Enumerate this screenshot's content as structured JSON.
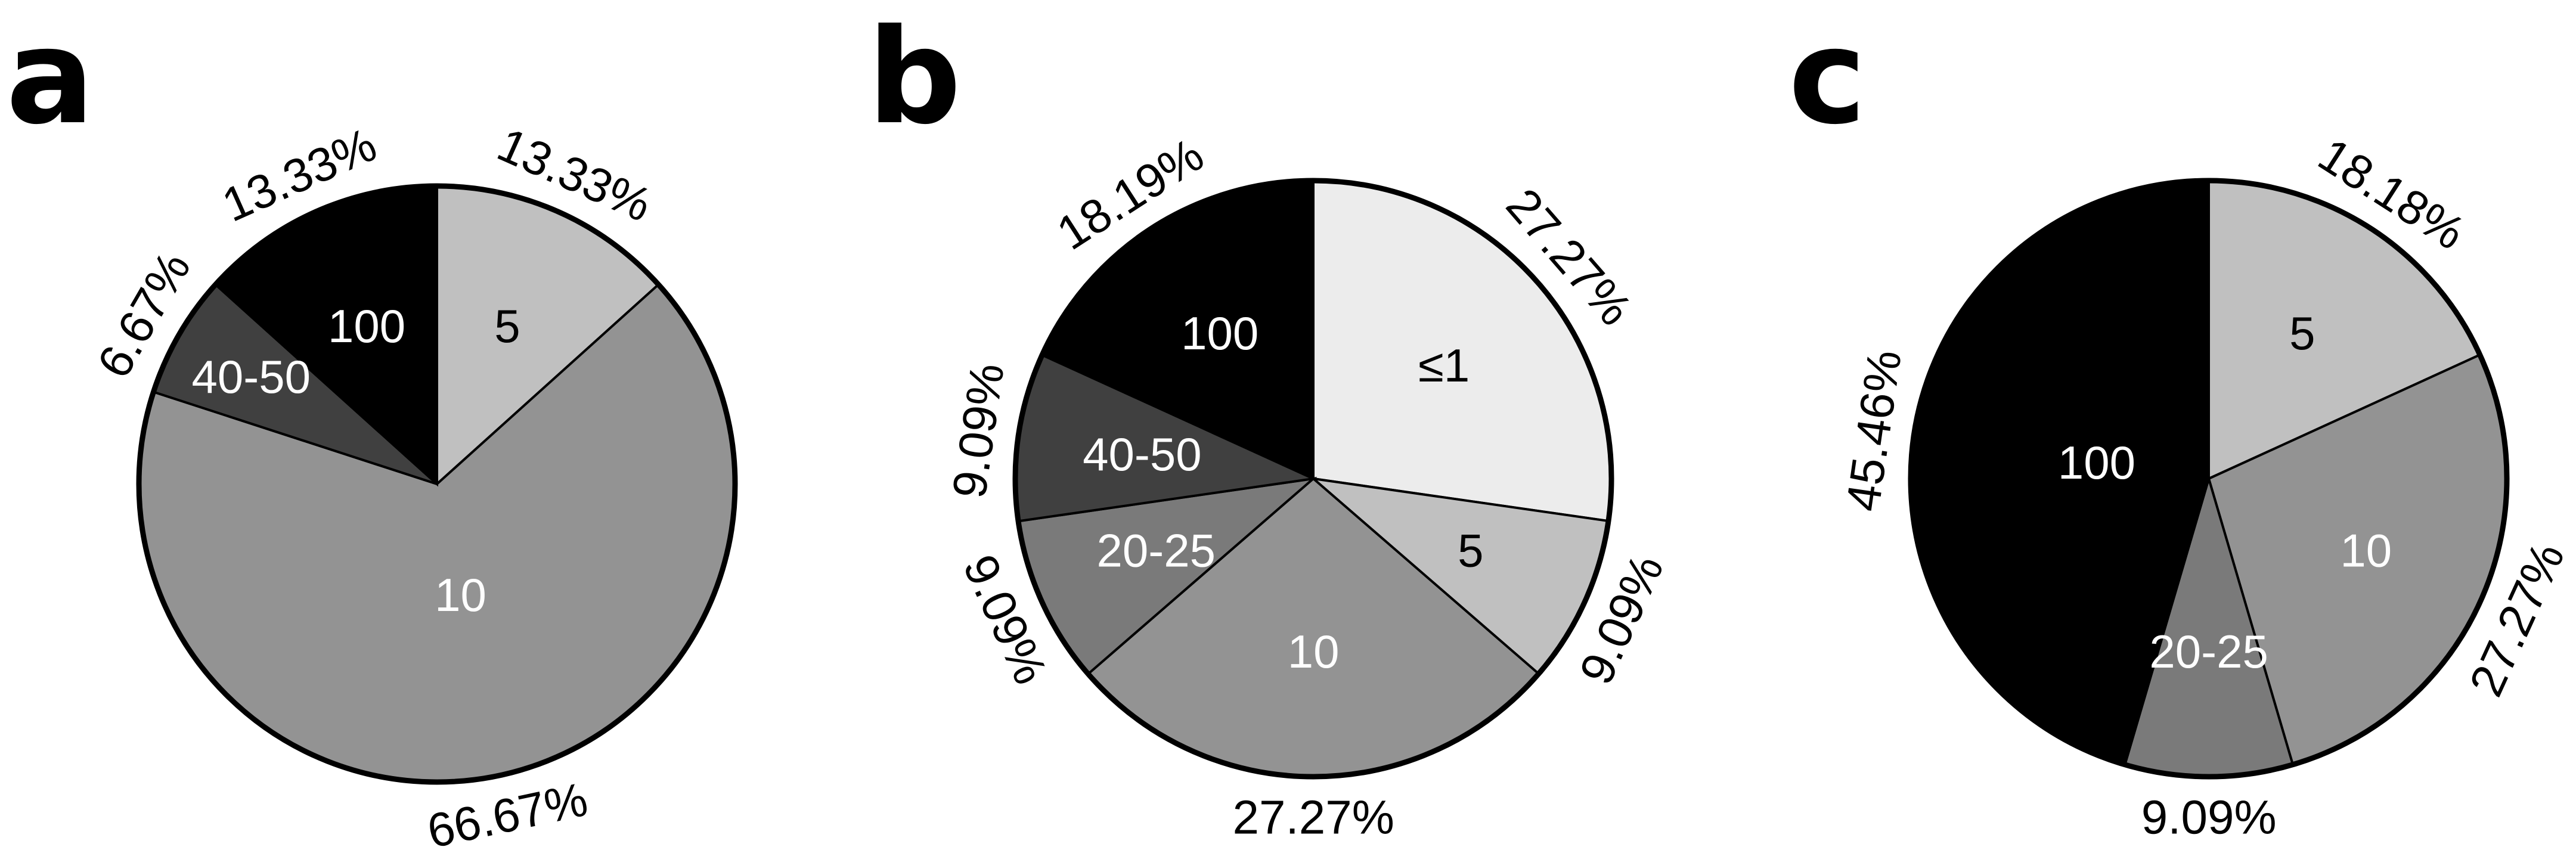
{
  "chart_data": [
    {
      "type": "pie",
      "panel": "a",
      "slices": [
        {
          "label": "5",
          "value": 13.33,
          "percent_label": "13.33%",
          "color": "#c0c0c0",
          "text_color": "#000000"
        },
        {
          "label": "10",
          "value": 66.67,
          "percent_label": "66.67%",
          "color": "#939393",
          "text_color": "#ffffff"
        },
        {
          "label": "40-50",
          "value": 6.67,
          "percent_label": "6.67%",
          "color": "#404040",
          "text_color": "#ffffff"
        },
        {
          "label": "100",
          "value": 13.33,
          "percent_label": "13.33%",
          "color": "#000000",
          "text_color": "#ffffff"
        }
      ]
    },
    {
      "type": "pie",
      "panel": "b",
      "slices": [
        {
          "label": "≤1",
          "value": 27.27,
          "percent_label": "27.27%",
          "color": "#ececec",
          "text_color": "#000000"
        },
        {
          "label": "5",
          "value": 9.09,
          "percent_label": "9.09%",
          "color": "#c0c0c0",
          "text_color": "#000000"
        },
        {
          "label": "10",
          "value": 27.27,
          "percent_label": "27.27%",
          "color": "#939393",
          "text_color": "#ffffff"
        },
        {
          "label": "20-25",
          "value": 9.09,
          "percent_label": "9.09%",
          "color": "#7a7a7a",
          "text_color": "#ffffff"
        },
        {
          "label": "40-50",
          "value": 9.09,
          "percent_label": "9.09%",
          "color": "#404040",
          "text_color": "#ffffff"
        },
        {
          "label": "100",
          "value": 18.19,
          "percent_label": "18.19%",
          "color": "#000000",
          "text_color": "#ffffff"
        }
      ]
    },
    {
      "type": "pie",
      "panel": "c",
      "slices": [
        {
          "label": "5",
          "value": 18.18,
          "percent_label": "18.18%",
          "color": "#c0c0c0",
          "text_color": "#000000"
        },
        {
          "label": "10",
          "value": 27.27,
          "percent_label": "27.27%",
          "color": "#939393",
          "text_color": "#ffffff"
        },
        {
          "label": "20-25",
          "value": 9.09,
          "percent_label": "9.09%",
          "color": "#7a7a7a",
          "text_color": "#ffffff"
        },
        {
          "label": "100",
          "value": 45.46,
          "percent_label": "45.46%",
          "color": "#000000",
          "text_color": "#ffffff"
        }
      ]
    }
  ]
}
